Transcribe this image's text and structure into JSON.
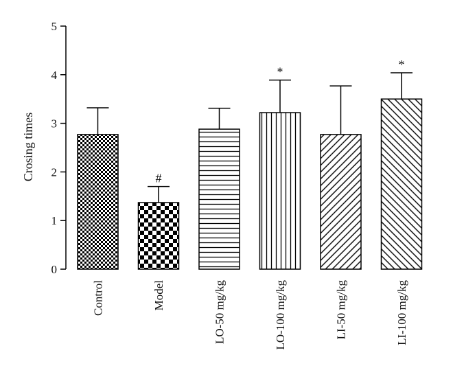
{
  "chart_data": {
    "type": "bar",
    "title": "",
    "xlabel": "",
    "ylabel": "Crosing times",
    "ylim": [
      0,
      5
    ],
    "yticks": [
      "0",
      "1",
      "2",
      "3",
      "4",
      "5"
    ],
    "grid": false,
    "legend": "none",
    "categories": [
      "Control",
      "Model",
      "LO-50 mg/kg",
      "LO-100 mg/kg",
      "LI-50 mg/kg",
      "LI-100 mg/kg"
    ],
    "values": [
      2.77,
      1.37,
      2.88,
      3.22,
      2.77,
      3.5
    ],
    "errors": [
      0.55,
      0.33,
      0.43,
      0.67,
      1.0,
      0.54
    ],
    "annotations": [
      "",
      "#",
      "",
      "*",
      "",
      "*"
    ],
    "patterns": [
      "small-checker",
      "large-checker",
      "horizontal-lines",
      "vertical-lines",
      "diagonal-lines",
      "back-diagonal-lines"
    ],
    "colors": {
      "bar_fill": "#000000",
      "background": "#ffffff"
    }
  }
}
